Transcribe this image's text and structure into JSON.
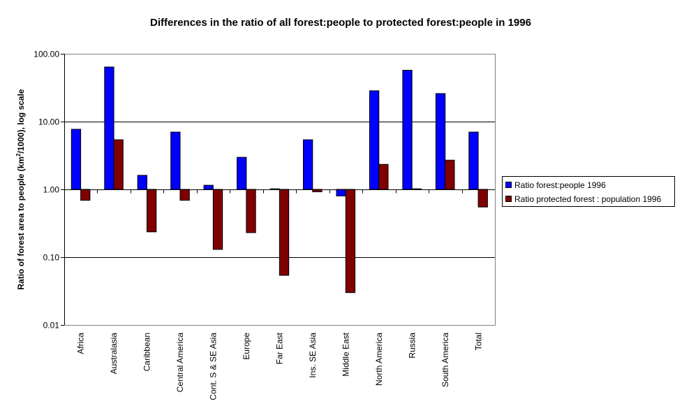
{
  "chart_data": {
    "type": "bar",
    "title": "Differences in the ratio of all forest:people to protected forest:people in 1996",
    "xlabel": "",
    "ylabel": "Ratio of forest area to people (km²/1000), log scale",
    "ylabel_parts": {
      "pre": "Ratio of forest area to people (km",
      "sup": "2",
      "post": "/1000), log scale"
    },
    "yscale": "log",
    "ylim": [
      0.01,
      100
    ],
    "baseline": 1,
    "yticks": [
      0.01,
      0.1,
      1,
      10,
      100
    ],
    "ytick_labels": [
      "0.01",
      "0.10",
      "1.00",
      "10.00",
      "100.00"
    ],
    "grid": true,
    "legend_position": "right",
    "categories": [
      "Africa",
      "Australasia",
      "Caribbean",
      "Central America",
      "Cont. S & SE Asia",
      "Europe",
      "Far East",
      "Ins. SE Asia",
      "Middle East",
      "North America",
      "Russia",
      "South America",
      "Total"
    ],
    "series": [
      {
        "name": "Ratio forest:people 1996",
        "color": "#0000FF",
        "values": [
          7.7,
          63.8,
          1.61,
          7.0,
          1.15,
          2.97,
          1.02,
          5.4,
          0.8,
          28.5,
          57.3,
          25.9,
          7.0
        ]
      },
      {
        "name": "Ratio protected forest : population 1996",
        "color": "#800000",
        "values": [
          0.69,
          5.4,
          0.236,
          0.69,
          0.13,
          0.23,
          0.054,
          0.92,
          0.03,
          2.34,
          1.02,
          2.7,
          0.55
        ]
      }
    ]
  }
}
